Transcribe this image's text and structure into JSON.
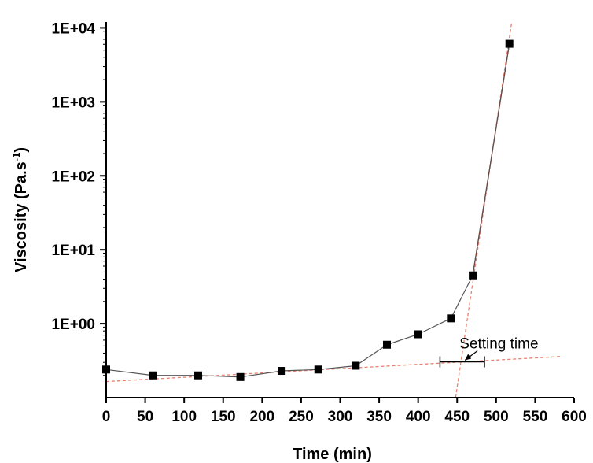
{
  "chart_data": {
    "type": "scatter",
    "title": "",
    "xlabel": "Time (min)",
    "ylabel": {
      "main": "Viscosity (Pa.s",
      "superscript": "-1",
      "close": ")"
    },
    "xlim": [
      0,
      600
    ],
    "ylim": [
      0.1,
      12000
    ],
    "y_scale": "log",
    "x_ticks": [
      0,
      50,
      100,
      150,
      200,
      250,
      300,
      350,
      400,
      450,
      500,
      550,
      600
    ],
    "x_tick_labels": [
      "0",
      "50",
      "100",
      "150",
      "200",
      "250",
      "300",
      "350",
      "400",
      "450",
      "500",
      "550",
      "600"
    ],
    "y_ticks": [
      1,
      10,
      100,
      1000,
      10000
    ],
    "y_tick_labels": [
      "1E+00",
      "1E+01",
      "1E+02",
      "1E+03",
      "1E+04"
    ],
    "grid": false,
    "legend": "none",
    "series": [
      {
        "marker": "square",
        "color": "#000000",
        "line_color": "#555555",
        "x": [
          0,
          60,
          118,
          172,
          225,
          272,
          320,
          360,
          400,
          442,
          470,
          517
        ],
        "y": [
          0.24,
          0.2,
          0.2,
          0.19,
          0.23,
          0.24,
          0.27,
          0.52,
          0.72,
          1.18,
          4.5,
          6100
        ]
      }
    ],
    "fit_lines": [
      {
        "style": "dashed",
        "color": "#e8806e",
        "x": [
          0,
          583
        ],
        "y": [
          0.165,
          0.36
        ]
      },
      {
        "style": "dashed",
        "color": "#e8806e",
        "x": [
          448,
          520
        ],
        "y": [
          0.1,
          12000
        ]
      },
      {
        "style": "solid",
        "color": "#cc3322",
        "x": [
          470,
          517
        ],
        "y": [
          4.5,
          6100
        ]
      }
    ],
    "annotations": [
      {
        "text": "Setting time",
        "error_bar": {
          "x_center": 453,
          "x_min": 428,
          "x_max": 485,
          "y": 0.305
        },
        "arrow_to": {
          "x": 460,
          "y": 0.305
        }
      }
    ]
  }
}
